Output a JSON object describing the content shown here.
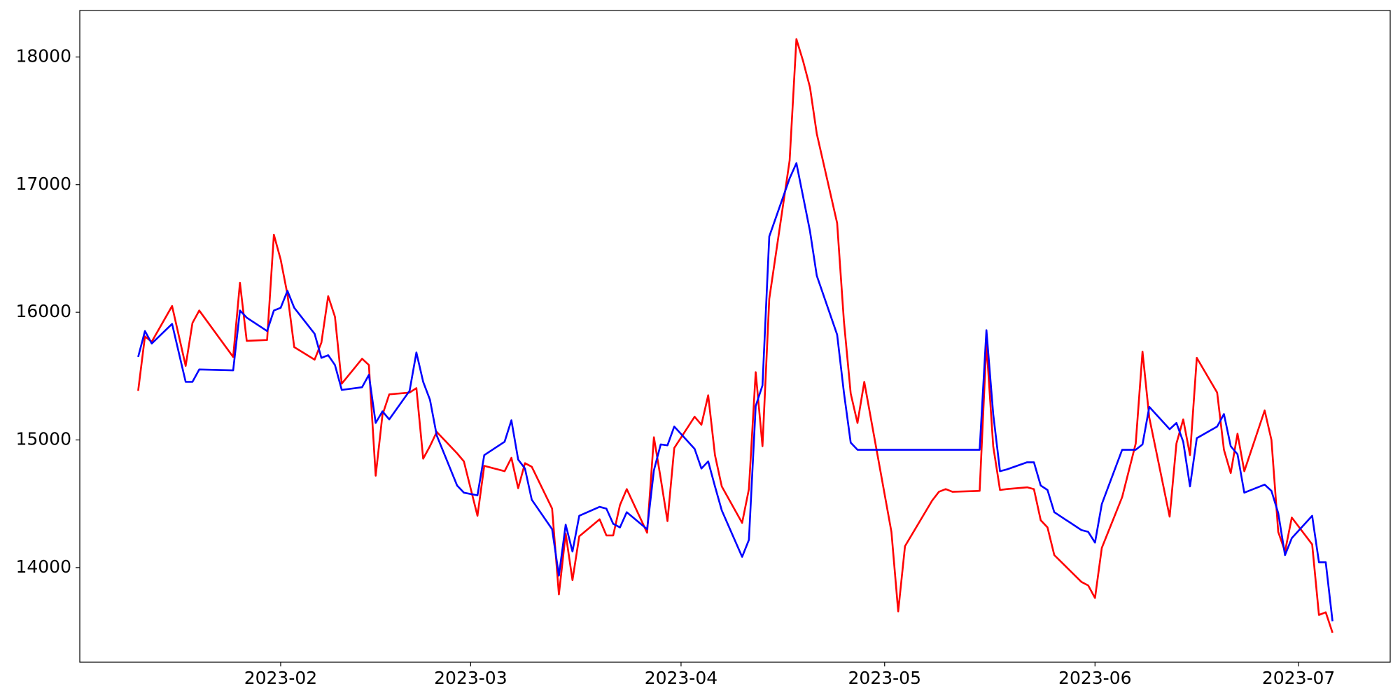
{
  "chart_data": {
    "type": "line",
    "x": [
      19368,
      19369,
      19370,
      19373,
      19375,
      19376,
      19377,
      19382,
      19383,
      19384,
      19387,
      19388,
      19389,
      19390,
      19391,
      19394,
      19395,
      19396,
      19397,
      19398,
      19401,
      19402,
      19403,
      19404,
      19405,
      19408,
      19409,
      19410,
      19411,
      19412,
      19415,
      19416,
      19418,
      19419,
      19422,
      19423,
      19424,
      19425,
      19426,
      19429,
      19430,
      19431,
      19432,
      19433,
      19436,
      19437,
      19438,
      19439,
      19440,
      19443,
      19444,
      19445,
      19446,
      19447,
      19450,
      19451,
      19452,
      19453,
      19454,
      19457,
      19458,
      19459,
      19460,
      19461,
      19464,
      19465,
      19466,
      19467,
      19468,
      19471,
      19472,
      19473,
      19474,
      19475,
      19479,
      19480,
      19481,
      19485,
      19486,
      19487,
      19488,
      19492,
      19493,
      19494,
      19495,
      19496,
      19499,
      19500,
      19501,
      19502,
      19503,
      19507,
      19508,
      19509,
      19510,
      19513,
      19515,
      19516,
      19517,
      19520,
      19521,
      19522,
      19523,
      19524,
      19527,
      19528,
      19529,
      19530,
      19531,
      19534,
      19535,
      19536,
      19537,
      19538,
      19541,
      19542,
      19543,
      19544
    ],
    "series": [
      {
        "color": "#ff0000",
        "values": [
          15385,
          15811,
          15769,
          16049,
          15580,
          15916,
          16014,
          15650,
          16231,
          15776,
          15783,
          16608,
          16413,
          16140,
          15727,
          15629,
          15762,
          16126,
          15965,
          15441,
          15636,
          15587,
          14720,
          15196,
          15357,
          15371,
          15406,
          14853,
          14951,
          15063,
          14895,
          14832,
          14406,
          14797,
          14755,
          14860,
          14622,
          14818,
          14790,
          14462,
          13790,
          14266,
          13902,
          14245,
          14378,
          14252,
          14252,
          14490,
          14615,
          14273,
          15021,
          14699,
          14364,
          14937,
          15182,
          15119,
          15350,
          14881,
          14636,
          14350,
          14615,
          15531,
          14951,
          16105,
          17189,
          18140,
          17965,
          17762,
          17399,
          16699,
          15930,
          15364,
          15133,
          15455,
          14280,
          13657,
          14168,
          14525,
          14594,
          14615,
          14594,
          14601,
          15755,
          14951,
          14608,
          14615,
          14629,
          14615,
          14371,
          14315,
          14098,
          13888,
          13860,
          13762,
          14154,
          14552,
          14972,
          15692,
          15175,
          14399,
          14972,
          15161,
          14881,
          15643,
          15371,
          14923,
          14741,
          15049,
          14755,
          15231,
          15000,
          14280,
          14126,
          14392,
          14182,
          13629,
          13650,
          13490
        ]
      },
      {
        "color": "#0000ff",
        "values": [
          15650,
          15853,
          15755,
          15909,
          15455,
          15455,
          15552,
          15545,
          16014,
          15958,
          15853,
          16014,
          16035,
          16168,
          16035,
          15832,
          15643,
          15664,
          15587,
          15392,
          15413,
          15510,
          15133,
          15224,
          15161,
          15385,
          15685,
          15455,
          15315,
          15035,
          14643,
          14587,
          14566,
          14881,
          14986,
          15154,
          14846,
          14776,
          14532,
          14301,
          13937,
          14336,
          14126,
          14406,
          14476,
          14462,
          14343,
          14315,
          14434,
          14301,
          14762,
          14965,
          14958,
          15105,
          14930,
          14776,
          14832,
          14636,
          14448,
          14084,
          14217,
          15266,
          15427,
          16594,
          17049,
          17168,
          16902,
          16636,
          16287,
          15825,
          15371,
          14979,
          14923,
          14923,
          14923,
          14923,
          14923,
          14923,
          14923,
          14923,
          14923,
          14923,
          15860,
          15203,
          14755,
          14769,
          14825,
          14825,
          14643,
          14608,
          14434,
          14294,
          14280,
          14196,
          14497,
          14923,
          14923,
          14965,
          15259,
          15084,
          15133,
          14986,
          14636,
          15014,
          15105,
          15203,
          14951,
          14888,
          14587,
          14650,
          14601,
          14427,
          14098,
          14231,
          14406,
          14042,
          14042,
          13580
        ]
      }
    ],
    "xlim": [
      19359.4,
      19552.5
    ],
    "xticks": [
      {
        "value": 19389,
        "label": "2023-02"
      },
      {
        "value": 19417,
        "label": "2023-03"
      },
      {
        "value": 19448,
        "label": "2023-04"
      },
      {
        "value": 19478,
        "label": "2023-05"
      },
      {
        "value": 19509,
        "label": "2023-06"
      },
      {
        "value": 19539,
        "label": "2023-07"
      }
    ],
    "ylim": [
      13259,
      18364
    ],
    "yticks": [
      14000,
      15000,
      16000,
      17000,
      18000
    ]
  }
}
